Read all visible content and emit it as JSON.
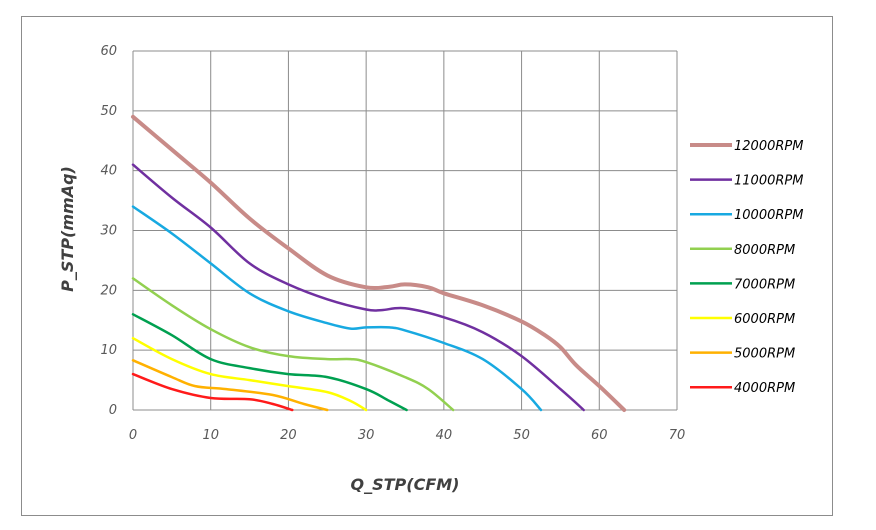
{
  "chart_data": {
    "type": "line",
    "xlabel": "Q_STP(CFM)",
    "ylabel": "P_STP(mmAq)",
    "xlim": [
      0,
      70
    ],
    "ylim": [
      0,
      60
    ],
    "xticks": [
      0,
      10,
      20,
      30,
      40,
      50,
      60,
      70
    ],
    "yticks": [
      0,
      10,
      20,
      30,
      40,
      50,
      60
    ],
    "grid": true,
    "legend_position": "right",
    "series": [
      {
        "name": "12000RPM",
        "color": "#c88b88",
        "x": [
          0,
          5,
          10,
          15,
          20,
          25,
          30,
          33,
          35,
          38,
          40,
          45,
          50,
          53,
          55,
          57,
          60,
          63.2
        ],
        "y": [
          49,
          43.5,
          38,
          32,
          27,
          22.5,
          20.5,
          20.6,
          21,
          20.5,
          19.5,
          17.5,
          14.8,
          12.5,
          10.5,
          7.5,
          4,
          0
        ]
      },
      {
        "name": "11000RPM",
        "color": "#7030a0",
        "x": [
          0,
          5,
          10,
          15,
          20,
          25,
          30,
          32,
          35,
          40,
          45,
          50,
          55,
          58
        ],
        "y": [
          41,
          35.5,
          30.5,
          24.5,
          21,
          18.5,
          16.8,
          16.7,
          17,
          15.5,
          13,
          9,
          3.5,
          0
        ]
      },
      {
        "name": "10000RPM",
        "color": "#18a9e1",
        "x": [
          0,
          5,
          10,
          15,
          20,
          25,
          28,
          30,
          33,
          35,
          40,
          45,
          50,
          52.5
        ],
        "y": [
          34,
          29.5,
          24.5,
          19.5,
          16.5,
          14.5,
          13.6,
          13.8,
          13.8,
          13.3,
          11.2,
          8.5,
          3.5,
          0
        ]
      },
      {
        "name": "8000RPM",
        "color": "#92d050",
        "x": [
          0,
          5,
          10,
          15,
          20,
          25,
          28,
          30,
          35,
          38,
          41.2
        ],
        "y": [
          22,
          17.5,
          13.5,
          10.5,
          9,
          8.5,
          8.5,
          8,
          5.5,
          3.5,
          0
        ]
      },
      {
        "name": "7000RPM",
        "color": "#00a050",
        "x": [
          0,
          5,
          10,
          15,
          20,
          25,
          30,
          33,
          35.2
        ],
        "y": [
          16,
          12.5,
          8.5,
          7,
          6,
          5.5,
          3.5,
          1.5,
          0
        ]
      },
      {
        "name": "6000RPM",
        "color": "#ffff00",
        "x": [
          0,
          5,
          10,
          15,
          20,
          25,
          28,
          30
        ],
        "y": [
          12,
          8.5,
          6,
          5,
          4,
          3,
          1.5,
          0
        ]
      },
      {
        "name": "5000RPM",
        "color": "#ffb100",
        "x": [
          0,
          5,
          8,
          12,
          18,
          22,
          25
        ],
        "y": [
          8.3,
          5.5,
          4,
          3.5,
          2.5,
          1,
          0
        ]
      },
      {
        "name": "4000RPM",
        "color": "#ff1a1a",
        "x": [
          0,
          5,
          10,
          15,
          18,
          20.5
        ],
        "y": [
          6,
          3.5,
          2,
          1.8,
          1,
          0
        ]
      }
    ]
  }
}
